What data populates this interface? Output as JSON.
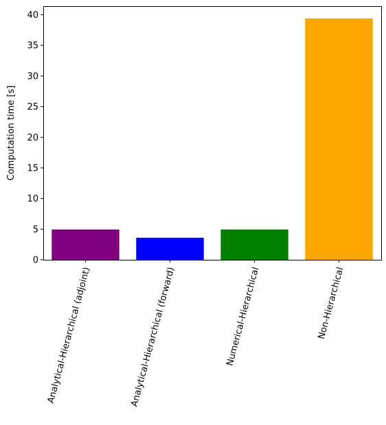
{
  "chart_data": {
    "type": "bar",
    "title": "",
    "xlabel": "",
    "ylabel": "Computation time [s]",
    "categories": [
      "Analytical-Hierarchical (adjoint)",
      "Analytical-Hierarchical (forward)",
      "Numerical-Hierarchical",
      "Non-Hierarchical"
    ],
    "values": [
      4.95,
      3.6,
      4.95,
      39.4
    ],
    "colors": [
      "#800080",
      "#0000ff",
      "#008000",
      "#ffa500"
    ],
    "ylim": [
      0,
      41.4
    ],
    "yticks": [
      0,
      5,
      10,
      15,
      20,
      25,
      30,
      35,
      40
    ],
    "ytick_labels": [
      "0",
      "5",
      "10",
      "15",
      "20",
      "25",
      "30",
      "35",
      "40"
    ],
    "grid": false,
    "legend": "none"
  }
}
